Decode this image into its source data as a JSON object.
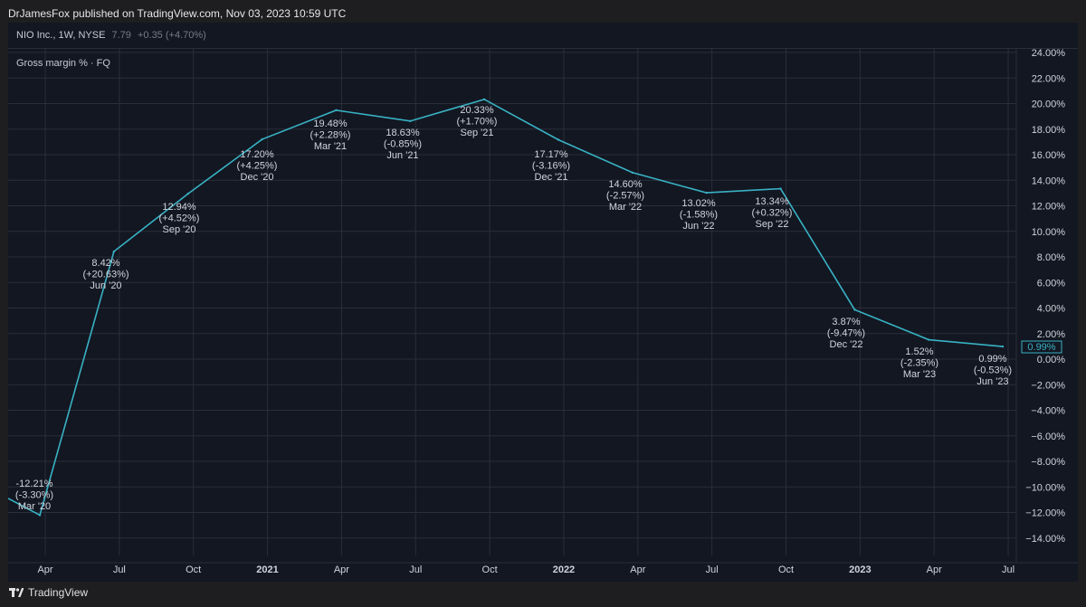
{
  "header": {
    "publisher_text": "DrJamesFox published on TradingView.com, Nov 03, 2023 10:59 UTC"
  },
  "symbol": {
    "name": "NIO Inc., 1W, NYSE",
    "price": "7.79",
    "change": "+0.35 (+4.70%)"
  },
  "indicator": {
    "title": "Gross margin % · FQ"
  },
  "footer": {
    "brand": "TradingView"
  },
  "colors": {
    "line": "#38b2c4",
    "background": "#131722",
    "grid": "#2a2e39",
    "text": "#d1d4dc"
  },
  "chart_data": {
    "type": "line",
    "title": "Gross margin % · FQ",
    "ylim": [
      -15,
      24
    ],
    "y_ticks": [
      "24.00%",
      "22.00%",
      "20.00%",
      "18.00%",
      "16.00%",
      "14.00%",
      "12.00%",
      "10.00%",
      "8.00%",
      "6.00%",
      "4.00%",
      "2.00%",
      "0.00%",
      "−2.00%",
      "−4.00%",
      "−6.00%",
      "−8.00%",
      "−10.00%",
      "−12.00%",
      "−14.00%"
    ],
    "x_ticks": [
      {
        "label": "Apr",
        "bold": false
      },
      {
        "label": "Jul",
        "bold": false
      },
      {
        "label": "Oct",
        "bold": false
      },
      {
        "label": "2021",
        "bold": true
      },
      {
        "label": "Apr",
        "bold": false
      },
      {
        "label": "Jul",
        "bold": false
      },
      {
        "label": "Oct",
        "bold": false
      },
      {
        "label": "2022",
        "bold": true
      },
      {
        "label": "Apr",
        "bold": false
      },
      {
        "label": "Jul",
        "bold": false
      },
      {
        "label": "Oct",
        "bold": false
      },
      {
        "label": "2023",
        "bold": true
      },
      {
        "label": "Apr",
        "bold": false
      },
      {
        "label": "Jul",
        "bold": false
      }
    ],
    "series": [
      {
        "name": "Gross margin %",
        "start_value": -10.9,
        "points": [
          {
            "value": -12.21,
            "label": "-12.21%",
            "change": "(-3.30%)",
            "period": "Mar '20"
          },
          {
            "value": 8.42,
            "label": "8.42%",
            "change": "(+20.63%)",
            "period": "Jun '20"
          },
          {
            "value": 12.94,
            "label": "12.94%",
            "change": "(+4.52%)",
            "period": "Sep '20"
          },
          {
            "value": 17.2,
            "label": "17.20%",
            "change": "(+4.25%)",
            "period": "Dec '20"
          },
          {
            "value": 19.48,
            "label": "19.48%",
            "change": "(+2.28%)",
            "period": "Mar '21"
          },
          {
            "value": 18.63,
            "label": "18.63%",
            "change": "(-0.85%)",
            "period": "Jun '21"
          },
          {
            "value": 20.33,
            "label": "20.33%",
            "change": "(+1.70%)",
            "period": "Sep '21"
          },
          {
            "value": 17.17,
            "label": "17.17%",
            "change": "(-3.16%)",
            "period": "Dec '21"
          },
          {
            "value": 14.6,
            "label": "14.60%",
            "change": "(-2.57%)",
            "period": "Mar '22"
          },
          {
            "value": 13.02,
            "label": "13.02%",
            "change": "(-1.58%)",
            "period": "Jun '22"
          },
          {
            "value": 13.34,
            "label": "13.34%",
            "change": "(+0.32%)",
            "period": "Sep '22"
          },
          {
            "value": 3.87,
            "label": "3.87%",
            "change": "(-9.47%)",
            "period": "Dec '22"
          },
          {
            "value": 1.52,
            "label": "1.52%",
            "change": "(-2.35%)",
            "period": "Mar '23"
          },
          {
            "value": 0.99,
            "label": "0.99%",
            "change": "(-0.53%)",
            "period": "Jun '23"
          }
        ]
      }
    ],
    "last_value_label": "0.99%"
  }
}
